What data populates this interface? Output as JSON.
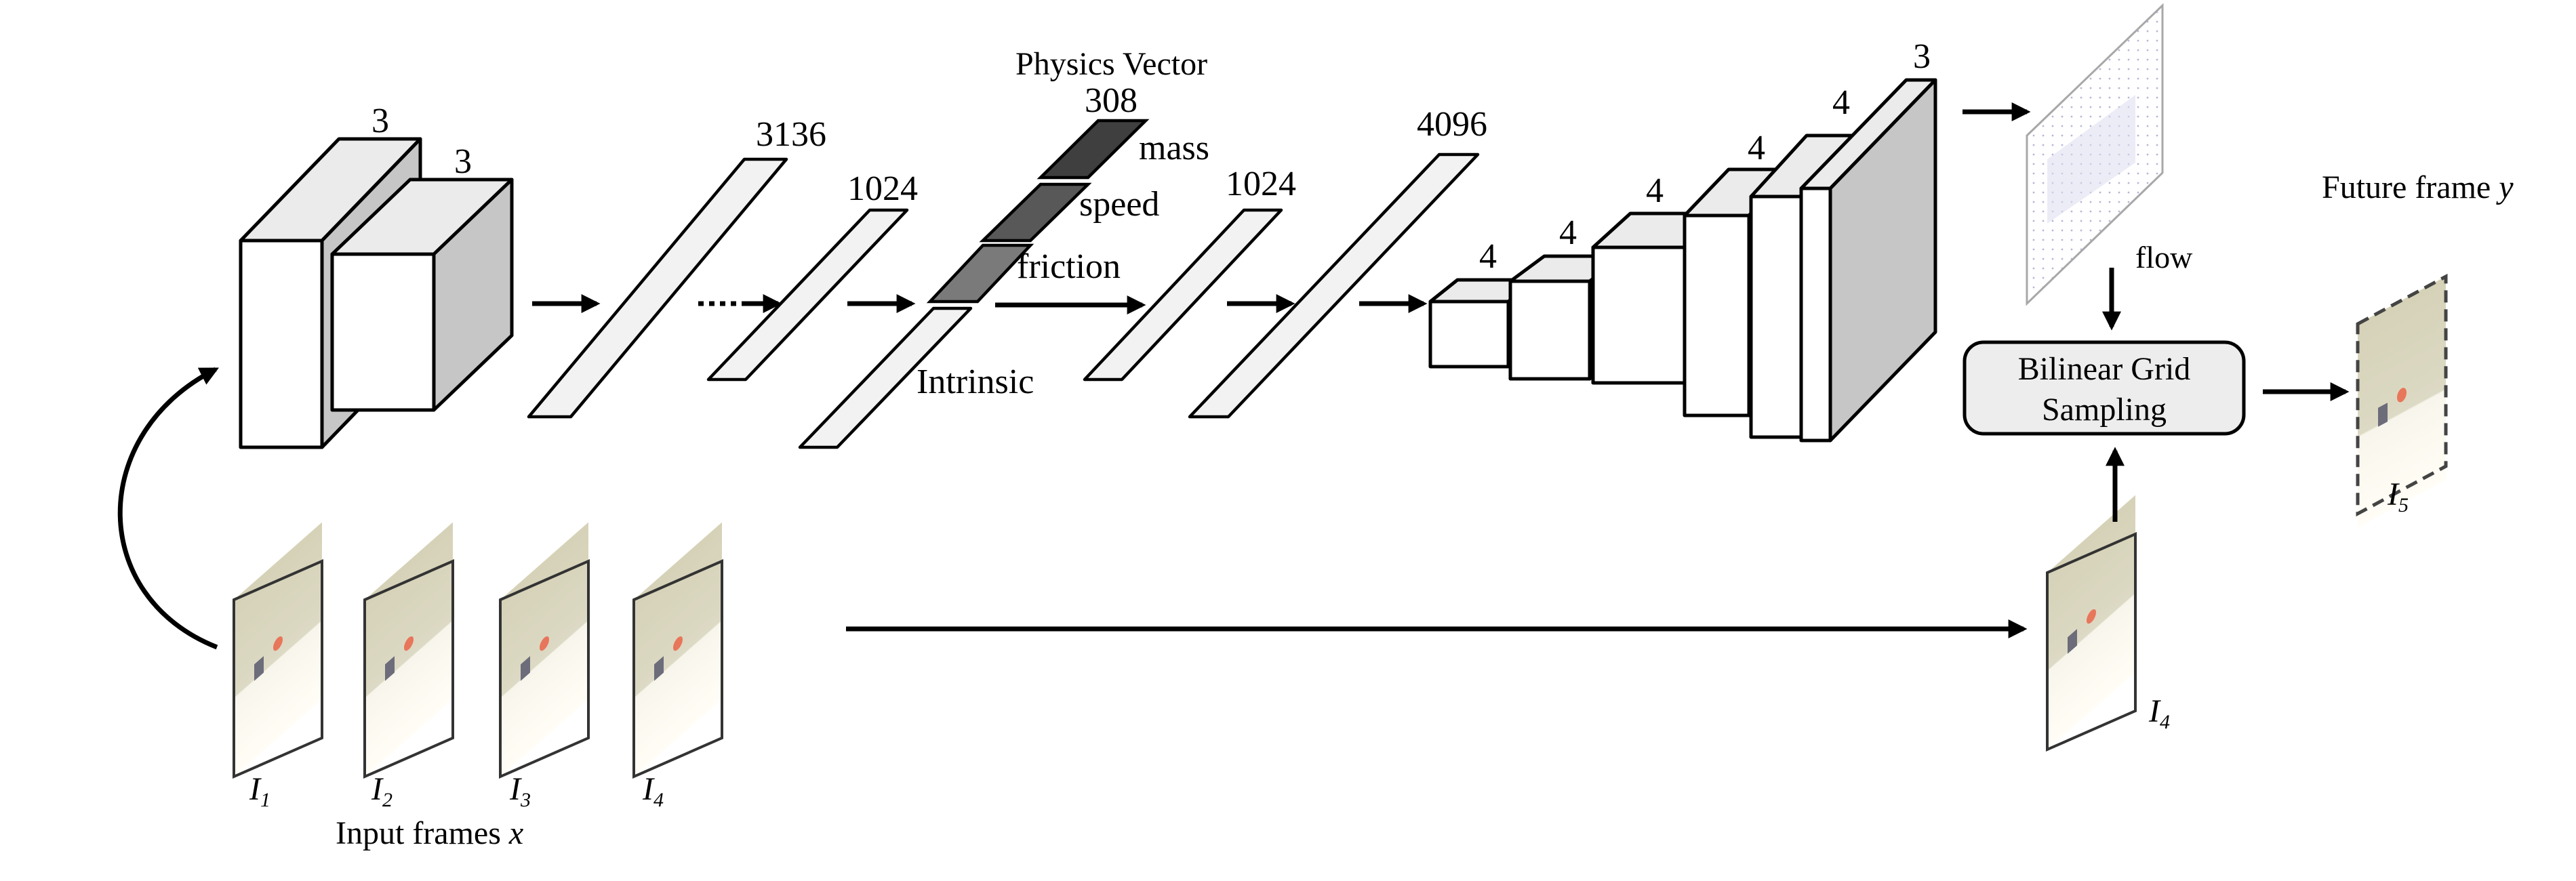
{
  "conv_encoder": {
    "labels": [
      "3",
      "3"
    ]
  },
  "fc_layers": {
    "labels": [
      "3136",
      "1024",
      "1024",
      "4096"
    ],
    "intrinsic_label": "Intrinsic"
  },
  "physics_vector": {
    "title": "Physics Vector",
    "size": "308",
    "components": [
      "mass",
      "speed",
      "friction"
    ],
    "colors": [
      "#3f3f3f",
      "#585858",
      "#7a7a7a"
    ]
  },
  "decoder": {
    "labels": [
      "4",
      "4",
      "4",
      "4",
      "4",
      "3"
    ]
  },
  "flow": {
    "label": "flow"
  },
  "sampler": {
    "line1": "Bilinear Grid",
    "line2": "Sampling"
  },
  "output": {
    "title": "Future frame",
    "var": "y",
    "frame": "I",
    "frame_sub": "5"
  },
  "input": {
    "title": "Input frames",
    "var": "x",
    "frames": [
      {
        "main": "I",
        "sub": "1"
      },
      {
        "main": "I",
        "sub": "2"
      },
      {
        "main": "I",
        "sub": "3"
      },
      {
        "main": "I",
        "sub": "4"
      }
    ]
  },
  "last_frame": {
    "main": "I",
    "sub": "4"
  }
}
